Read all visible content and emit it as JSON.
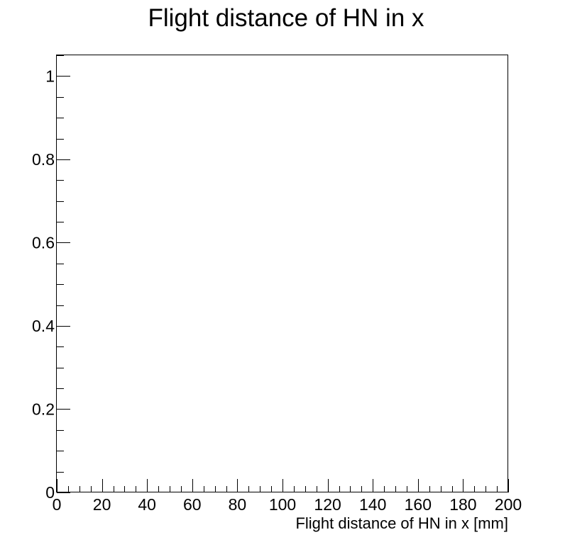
{
  "chart_data": {
    "type": "bar",
    "title": "Flight distance of HN in x",
    "xlabel": "Flight distance of HN in x [mm]",
    "ylabel": "",
    "xlim": [
      0,
      200
    ],
    "ylim": [
      0,
      1.05
    ],
    "x_ticks": [
      0,
      20,
      40,
      60,
      80,
      100,
      120,
      140,
      160,
      180,
      200
    ],
    "x_tick_labels": [
      "0",
      "20",
      "40",
      "60",
      "80",
      "100",
      "120",
      "140",
      "160",
      "180",
      "200"
    ],
    "x_minor_step": 5,
    "y_ticks": [
      0,
      0.2,
      0.4,
      0.6,
      0.8,
      1
    ],
    "y_tick_labels": [
      "0",
      "0.2",
      "0.4",
      "0.6",
      "0.8",
      "1"
    ],
    "y_minor_step": 0.05,
    "series": [],
    "grid": false,
    "legend": "none",
    "colors": {
      "axis": "#000000",
      "background": "#ffffff"
    }
  }
}
